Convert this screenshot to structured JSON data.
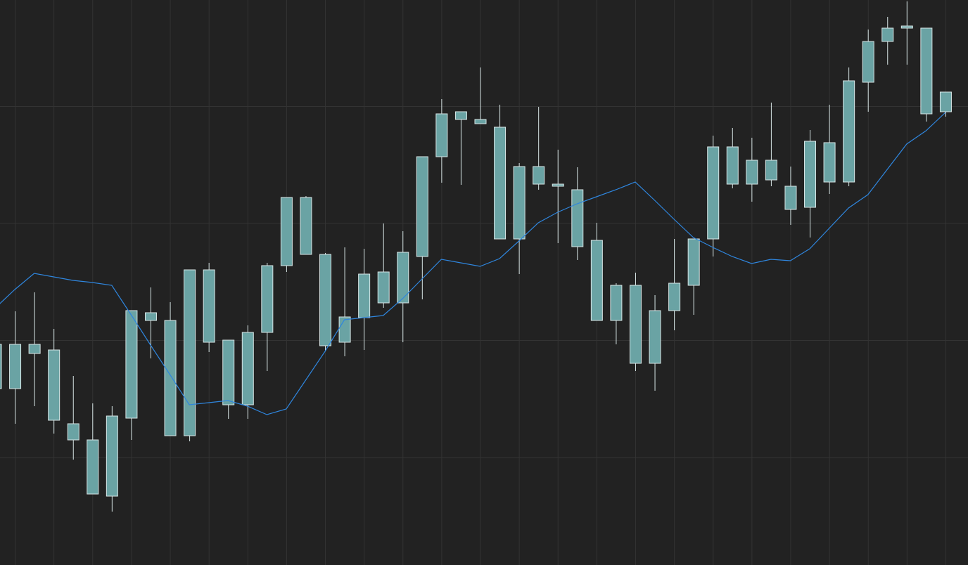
{
  "chart_data": {
    "type": "candlestick",
    "ylim": [
      0,
      804
    ],
    "yticks": [
      153,
      320,
      487,
      653
    ],
    "grid": true,
    "background": "#222222",
    "grid_color": "#333333",
    "body_color": "#6aa3a4",
    "outline_color": "#d8e6e6",
    "open": [
      251,
      251,
      301,
      206,
      178,
      101,
      98,
      209,
      348,
      184,
      184,
      317,
      228,
      228,
      331,
      426,
      442,
      312,
      317,
      352,
      373,
      373,
      439,
      581,
      634,
      628,
      464,
      464,
      542,
      539,
      453,
      348,
      348,
      287,
      287,
      362,
      398,
      464,
      542,
      542,
      548,
      506,
      509,
      545,
      545,
      687,
      745,
      764,
      642,
      645
    ],
    "close": [
      314,
      314,
      314,
      306,
      201,
      178,
      212,
      362,
      359,
      348,
      420,
      420,
      320,
      331,
      426,
      523,
      523,
      442,
      353,
      414,
      417,
      445,
      581,
      642,
      645,
      634,
      623,
      567,
      567,
      542,
      534,
      462,
      398,
      398,
      362,
      401,
      464,
      595,
      595,
      576,
      576,
      539,
      603,
      601,
      689,
      745,
      764,
      767,
      764,
      673
    ],
    "high": [
      324,
      361,
      388,
      336,
      269,
      230,
      226,
      362,
      395,
      374,
      420,
      430,
      320,
      341,
      430,
      523,
      525,
      444,
      452,
      450,
      486,
      475,
      581,
      663,
      645,
      708,
      655,
      572,
      652,
      591,
      566,
      487,
      401,
      416,
      384,
      464,
      464,
      611,
      622,
      608,
      658,
      567,
      619,
      655,
      708,
      762,
      780,
      802,
      764,
      673
    ],
    "low": [
      244,
      201,
      226,
      187,
      150,
      101,
      76,
      178,
      294,
      184,
      176,
      303,
      208,
      208,
      276,
      417,
      442,
      304,
      297,
      306,
      366,
      317,
      378,
      544,
      541,
      628,
      464,
      414,
      534,
      458,
      434,
      348,
      314,
      276,
      248,
      334,
      356,
      439,
      536,
      517,
      539,
      484,
      466,
      528,
      539,
      645,
      712,
      712,
      631,
      638
    ],
    "overlay": {
      "type": "line",
      "color": "#2f86de",
      "values": [
        366,
        392,
        415,
        410,
        405,
        402,
        398,
        356,
        313,
        271,
        228,
        231,
        234,
        226,
        214,
        222,
        263,
        304,
        349,
        352,
        355,
        379,
        407,
        435,
        430,
        425,
        436,
        461,
        487,
        502,
        514,
        524,
        534,
        545,
        519,
        492,
        466,
        452,
        439,
        429,
        435,
        433,
        450,
        479,
        508,
        527,
        563,
        599,
        618,
        644
      ]
    }
  }
}
